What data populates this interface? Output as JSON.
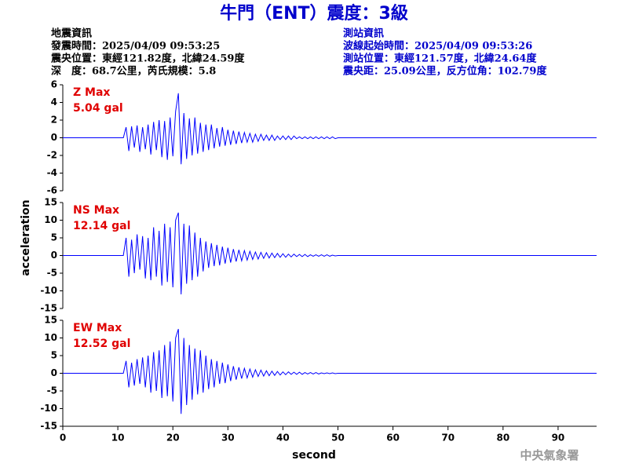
{
  "title": "牛門（ENT）震度：3級",
  "earthquake_info": [
    "地震資訊",
    "發震時間：2025/04/09 09:53:25",
    "震央位置：東經121.82度，北緯24.59度",
    "深　度：68.7公里，芮氏規模：5.8"
  ],
  "station_info": [
    "測站資訊",
    "波線起始時間：2025/04/09 09:53:26",
    "測站位置：東經121.57度，北緯24.64度",
    "震央距：25.09公里，反方位角：102.79度"
  ],
  "ylabel": "acceleration",
  "footer": "中央氣象署",
  "chart_data": [
    {
      "type": "line",
      "color": "#0000ff",
      "annotations": [
        "Z Max",
        "5.04 gal"
      ],
      "xlim": [
        0,
        97
      ],
      "ylim": [
        -6,
        6
      ],
      "yticks": [
        -6,
        -4,
        -2,
        0,
        2,
        4,
        6
      ],
      "x": [
        0,
        11,
        11.5,
        12,
        12.5,
        13,
        13.5,
        14,
        14.5,
        15,
        15.5,
        16,
        16.5,
        17,
        17.5,
        18,
        18.5,
        19,
        19.5,
        20,
        20.5,
        21,
        21.5,
        22,
        22.5,
        23,
        23.5,
        24,
        24.5,
        25,
        25.5,
        26,
        26.5,
        27,
        27.5,
        28,
        28.5,
        29,
        29.5,
        30,
        30.5,
        31,
        31.5,
        32,
        32.5,
        33,
        33.5,
        34,
        34.5,
        35,
        35.5,
        36,
        36.5,
        37,
        37.5,
        38,
        38.5,
        39,
        39.5,
        40,
        40.5,
        41,
        41.5,
        42,
        42.5,
        43,
        43.5,
        44,
        44.5,
        45,
        45.5,
        46,
        46.5,
        47,
        47.5,
        48,
        48.5,
        49,
        49.5,
        50,
        97
      ],
      "values": [
        0,
        0,
        1.2,
        -1.5,
        1.3,
        -1.1,
        1.4,
        -1.6,
        1.2,
        -1.3,
        1.5,
        -1.9,
        1.8,
        -1.4,
        2.0,
        -2.2,
        1.9,
        -2.5,
        2.3,
        -2.1,
        3.0,
        5.04,
        -3.0,
        2.8,
        -2.4,
        2.2,
        -2.0,
        2.3,
        -1.8,
        1.7,
        -1.6,
        1.5,
        -1.4,
        1.5,
        -1.2,
        1.1,
        -1.0,
        1.2,
        -0.9,
        0.9,
        -0.8,
        0.8,
        -0.7,
        0.7,
        -0.6,
        0.6,
        -0.5,
        0.5,
        -0.5,
        0.4,
        -0.4,
        0.4,
        -0.3,
        0.3,
        -0.3,
        0.3,
        -0.3,
        0.2,
        -0.2,
        0.2,
        -0.2,
        0.2,
        -0.2,
        0.2,
        -0.1,
        0.1,
        -0.1,
        0.1,
        -0.1,
        0.1,
        -0.1,
        0.1,
        -0.1,
        0.1,
        -0.1,
        0.1,
        -0.1,
        0.1,
        -0.1,
        0,
        0
      ]
    },
    {
      "type": "line",
      "color": "#0000ff",
      "annotations": [
        "NS Max",
        "12.14 gal"
      ],
      "xlim": [
        0,
        97
      ],
      "ylim": [
        -15,
        15
      ],
      "yticks": [
        -15,
        -10,
        -5,
        0,
        5,
        10,
        15
      ],
      "x": [
        0,
        11,
        11.5,
        12,
        12.5,
        13,
        13.5,
        14,
        14.5,
        15,
        15.5,
        16,
        16.5,
        17,
        17.5,
        18,
        18.5,
        19,
        19.5,
        20,
        20.5,
        21,
        21.5,
        22,
        22.5,
        23,
        23.5,
        24,
        24.5,
        25,
        25.5,
        26,
        26.5,
        27,
        27.5,
        28,
        28.5,
        29,
        29.5,
        30,
        30.5,
        31,
        31.5,
        32,
        32.5,
        33,
        33.5,
        34,
        34.5,
        35,
        35.5,
        36,
        36.5,
        37,
        37.5,
        38,
        38.5,
        39,
        39.5,
        40,
        40.5,
        41,
        41.5,
        42,
        42.5,
        43,
        43.5,
        44,
        44.5,
        45,
        45.5,
        46,
        46.5,
        47,
        47.5,
        48,
        48.5,
        49,
        49.5,
        50,
        97
      ],
      "values": [
        0,
        0,
        5,
        -6,
        4.5,
        -5,
        6,
        -4,
        5.5,
        -6.5,
        5,
        -7,
        8,
        -6,
        7,
        -8.5,
        9,
        -7.5,
        8,
        -9,
        10,
        12.14,
        -11,
        9,
        -8,
        8.5,
        -7,
        6.5,
        -6,
        5,
        -4.5,
        4,
        -3.5,
        3.5,
        -3,
        3,
        -2.8,
        2.5,
        -2.3,
        2.2,
        -2,
        1.8,
        -1.7,
        1.6,
        -1.5,
        1.4,
        -1.3,
        1.2,
        -1.1,
        1,
        -1,
        0.9,
        -0.8,
        0.8,
        -0.7,
        0.7,
        -0.6,
        0.6,
        -0.5,
        0.5,
        -0.5,
        0.4,
        -0.4,
        0.4,
        -0.3,
        0.3,
        -0.3,
        0.3,
        -0.3,
        0.2,
        -0.2,
        0.2,
        -0.2,
        0.2,
        -0.2,
        0.2,
        -0.2,
        0.1,
        -0.1,
        0,
        0
      ]
    },
    {
      "type": "line",
      "color": "#0000ff",
      "annotations": [
        "EW Max",
        "12.52 gal"
      ],
      "xlabel": "second",
      "xlim": [
        0,
        97
      ],
      "ylim": [
        -15,
        15
      ],
      "yticks": [
        -15,
        -10,
        -5,
        0,
        5,
        10,
        15
      ],
      "xticks": [
        0,
        10,
        20,
        30,
        40,
        50,
        60,
        70,
        80,
        90
      ],
      "x": [
        0,
        11,
        11.5,
        12,
        12.5,
        13,
        13.5,
        14,
        14.5,
        15,
        15.5,
        16,
        16.5,
        17,
        17.5,
        18,
        18.5,
        19,
        19.5,
        20,
        20.5,
        21,
        21.5,
        22,
        22.5,
        23,
        23.5,
        24,
        24.5,
        25,
        25.5,
        26,
        26.5,
        27,
        27.5,
        28,
        28.5,
        29,
        29.5,
        30,
        30.5,
        31,
        31.5,
        32,
        32.5,
        33,
        33.5,
        34,
        34.5,
        35,
        35.5,
        36,
        36.5,
        37,
        37.5,
        38,
        38.5,
        39,
        39.5,
        40,
        40.5,
        41,
        41.5,
        42,
        42.5,
        43,
        43.5,
        44,
        44.5,
        45,
        45.5,
        46,
        46.5,
        47,
        47.5,
        48,
        48.5,
        49,
        49.5,
        50,
        97
      ],
      "values": [
        0,
        0,
        3.5,
        -4,
        3,
        -3.5,
        4,
        -3,
        4.5,
        -4,
        5,
        -5.5,
        6,
        -5,
        6.5,
        -7,
        8,
        -6.5,
        9,
        -8,
        10,
        12.52,
        -11.5,
        10,
        -9,
        8,
        -7.5,
        7,
        -6,
        6.5,
        -5.5,
        5,
        -4.5,
        4,
        -4,
        3.5,
        -3,
        3,
        -2.8,
        2.5,
        -2.2,
        2,
        -1.8,
        1.7,
        -1.5,
        1.4,
        -1.3,
        1.2,
        -1.1,
        1,
        -0.9,
        0.9,
        -0.8,
        0.7,
        -0.7,
        0.6,
        -0.6,
        0.5,
        -0.5,
        0.4,
        -0.4,
        0.4,
        -0.3,
        0.3,
        -0.3,
        0.3,
        -0.3,
        0.2,
        -0.2,
        0.2,
        -0.2,
        0.2,
        -0.2,
        0.1,
        -0.1,
        0.1,
        -0.1,
        0.1,
        -0.1,
        0,
        0
      ]
    }
  ]
}
